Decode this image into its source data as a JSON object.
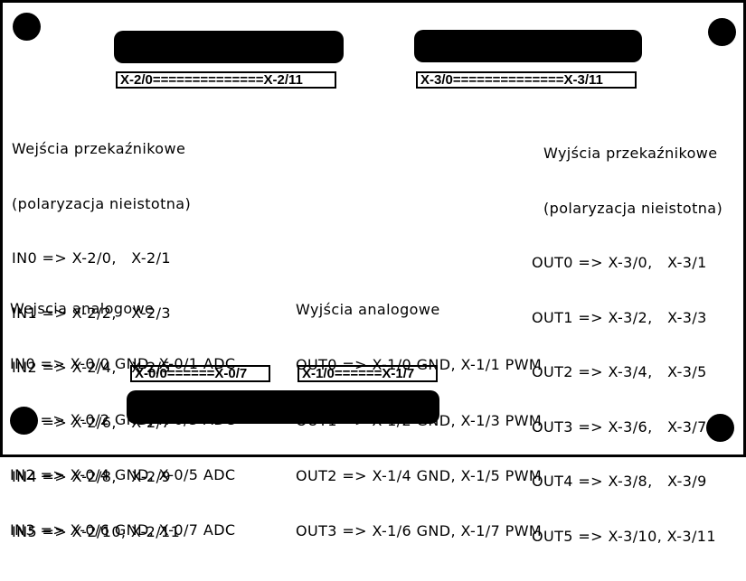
{
  "connectors": {
    "x2": "X-2/0==============X-2/11",
    "x3": "X-3/0==============X-3/11",
    "x0": "X-0/0======X-0/7",
    "x1": "X-1/0======X-1/7"
  },
  "relay_inputs": {
    "title": "Wejścia przekaźnikowe",
    "subtitle": "(polaryzacja nieistotna)",
    "lines": [
      "IN0 => X-2/0,   X-2/1",
      "IN1 => X-2/2,   X-2/3",
      "IN2 => X-2/4,   X-2/5",
      "IN3 => X-2/6,   X-2/7",
      "IN4 => X-2/8,   X-2/9",
      "IN5 => X-2/10, X-2/11"
    ]
  },
  "relay_outputs": {
    "title": "Wyjścia przekaźnikowe",
    "subtitle": "(polaryzacja nieistotna)",
    "lines": [
      "OUT0 => X-3/0,   X-3/1",
      "OUT1 => X-3/2,   X-3/3",
      "OUT2 => X-3/4,   X-3/5",
      "OUT3 => X-3/6,   X-3/7",
      "OUT4 => X-3/8,   X-3/9",
      "OUT5 => X-3/10, X-3/11"
    ]
  },
  "analog_inputs": {
    "title": "Wejscia analogowe",
    "lines": [
      "IN0 => X-0/0 GND, X-0/1 ADC",
      "IN1 => X-0/2 GND, X-0/3 ADC",
      "IN2 => X-0/4 GND, X-0/5 ADC",
      "IN3 => X-0/6 GND, X-0/7 ADC"
    ]
  },
  "analog_outputs": {
    "title": "Wyjścia analogowe",
    "lines": [
      "OUT0 => X-1/0 GND, X-1/1 PWM",
      "OUT1 => X-1/2 GND, X-1/3 PWM",
      "OUT2 => X-1/4 GND, X-1/5 PWM",
      "OUT3 => X-1/6 GND, X-1/7 PWM"
    ]
  }
}
